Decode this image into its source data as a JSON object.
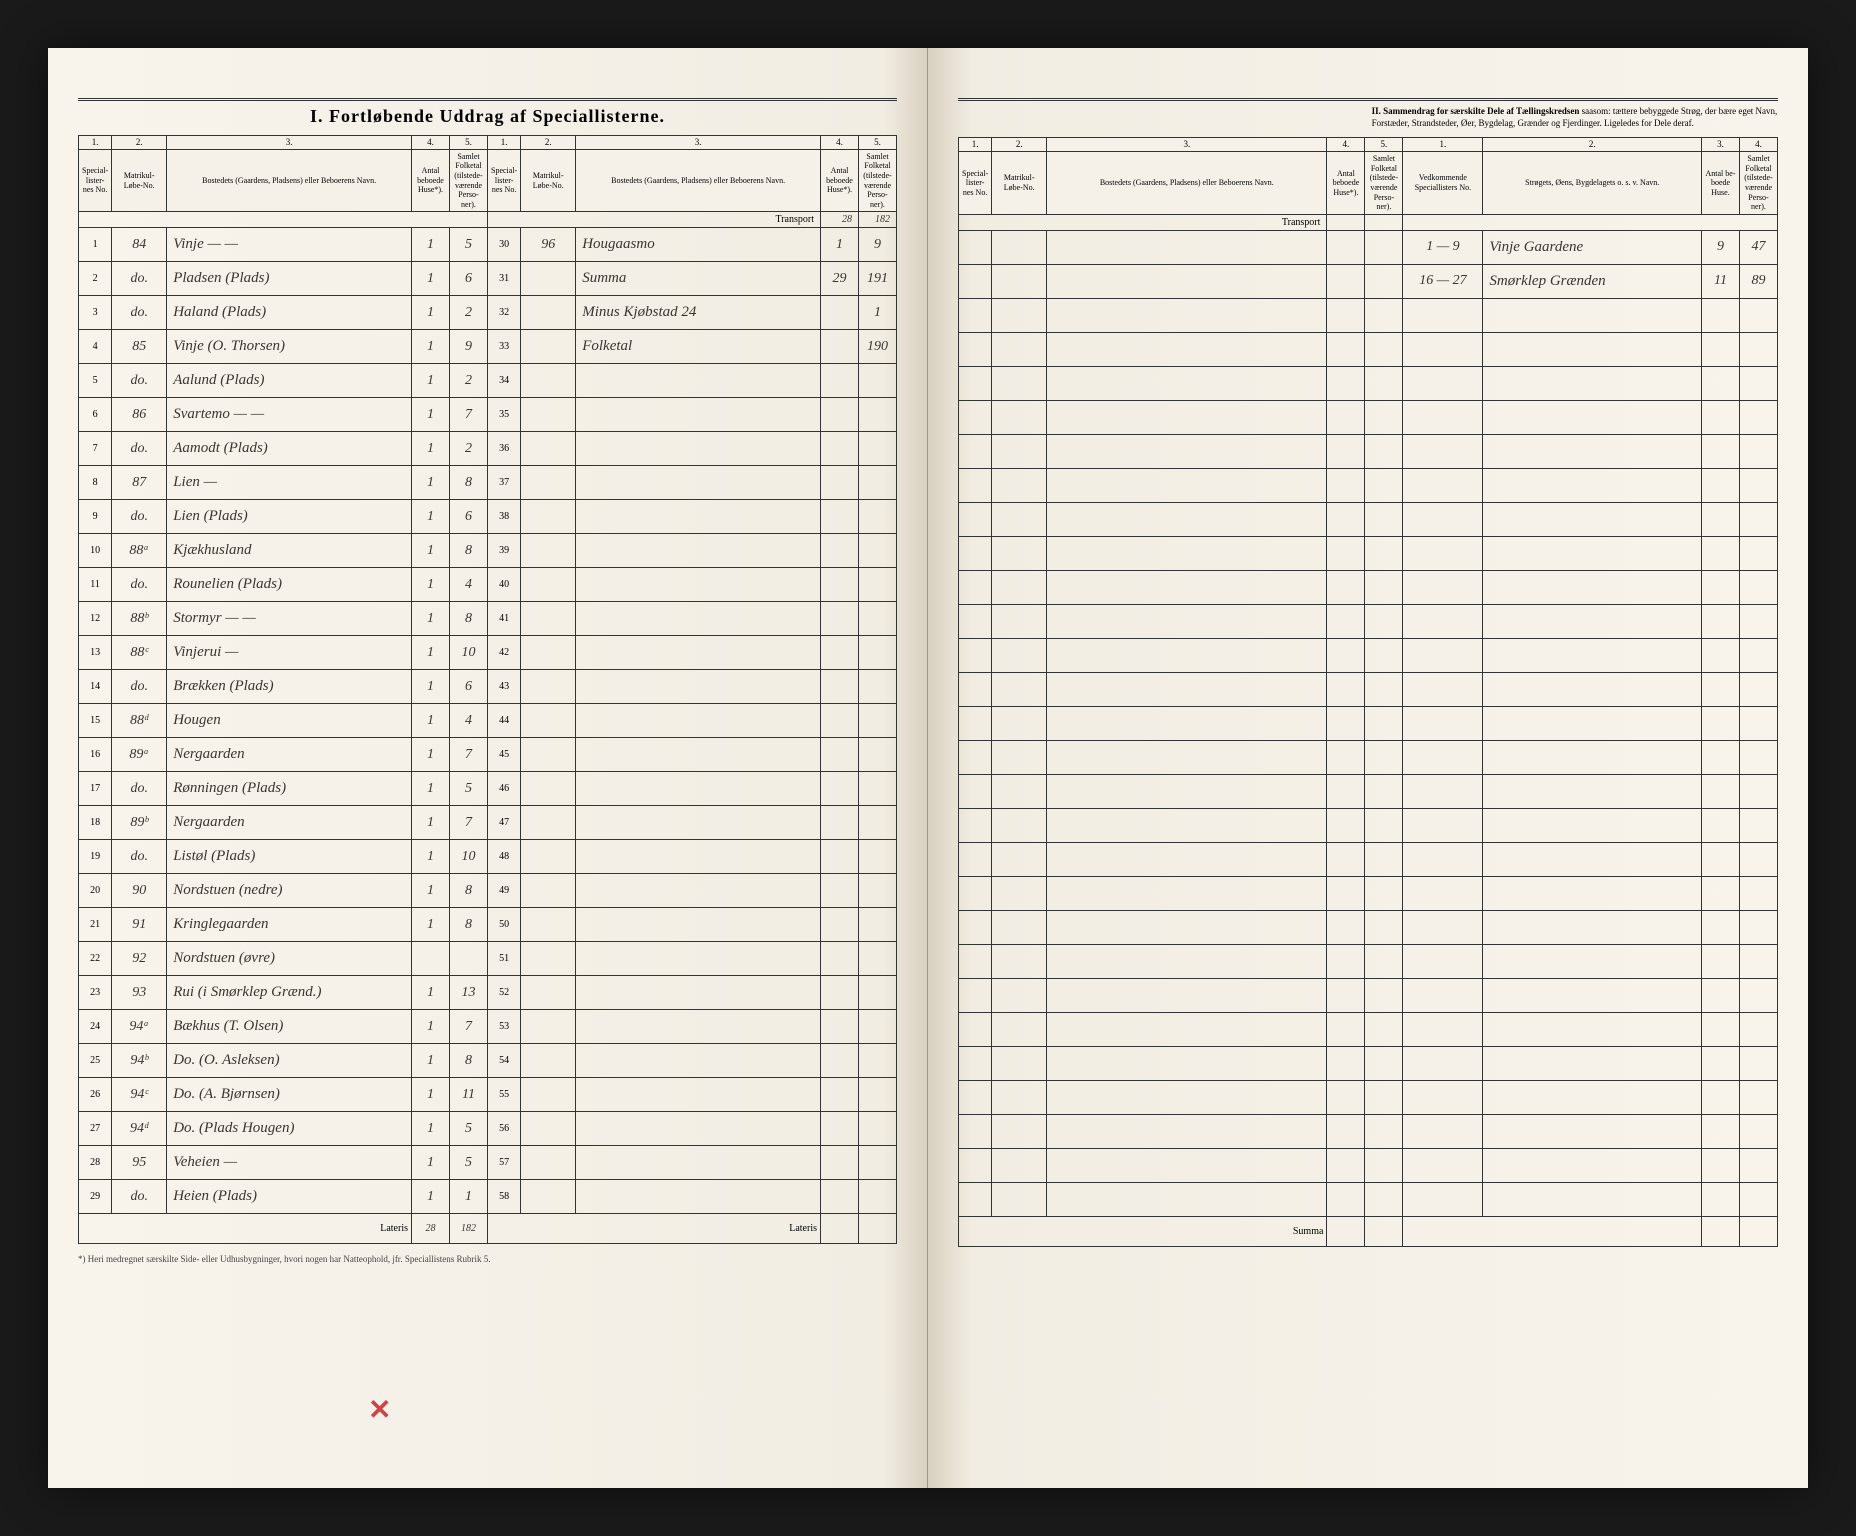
{
  "titles": {
    "main": "I.  Fortløbende Uddrag af Speciallisterne.",
    "section2_bold": "II.  Sammendrag for særskilte Dele af Tællingskredsen",
    "section2_rest": " saasom: tættere bebyggede Strøg, der bære eget Navn, Forstæder, Strandsteder, Øer, Bygdelag, Grænder og Fjerdinger. Ligeledes for Dele deraf.",
    "footnote": "*) Heri medregnet særskilte Side- eller Udhusbygninger, hvori nogen har Natteophold, jfr. Speciallistens Rubrik 5.",
    "transport": "Transport",
    "lateris": "Lateris",
    "summa": "Summa"
  },
  "headers": {
    "c1": "Special-lister-nes No.",
    "c2": "Matrikul-Løbe-No.",
    "c3": "Bostedets (Gaardens, Pladsens) eller Beboerens Navn.",
    "c4": "Antal beboede Huse*).",
    "c5": "Samlet Folketal (tilstede-værende Perso-ner).",
    "r1": "Vedkommende Speciallisters No.",
    "r2": "Strøgets, Øens, Bygdelagets o. s. v. Navn.",
    "r3": "Antal be-boede Huse.",
    "r4": "Samlet Folketal (tilstede-værende Perso-ner)."
  },
  "leftA": {
    "rows": [
      {
        "n": "1",
        "mat": "84",
        "name": "Vinje  —  —",
        "h": "1",
        "p": "5"
      },
      {
        "n": "2",
        "mat": "do.",
        "name": "Pladsen (Plads)",
        "h": "1",
        "p": "6"
      },
      {
        "n": "3",
        "mat": "do.",
        "name": "Haland (Plads)",
        "h": "1",
        "p": "2"
      },
      {
        "n": "4",
        "mat": "85",
        "name": "Vinje (O. Thorsen)",
        "h": "1",
        "p": "9"
      },
      {
        "n": "5",
        "mat": "do.",
        "name": "Aalund (Plads)",
        "h": "1",
        "p": "2"
      },
      {
        "n": "6",
        "mat": "86",
        "name": "Svartemo  —  —",
        "h": "1",
        "p": "7"
      },
      {
        "n": "7",
        "mat": "do.",
        "name": "Aamodt (Plads)",
        "h": "1",
        "p": "2"
      },
      {
        "n": "8",
        "mat": "87",
        "name": "Lien  —",
        "h": "1",
        "p": "8"
      },
      {
        "n": "9",
        "mat": "do.",
        "name": "Lien (Plads)",
        "h": "1",
        "p": "6"
      },
      {
        "n": "10",
        "mat": "88ᵃ",
        "name": "Kjækhusland",
        "h": "1",
        "p": "8"
      },
      {
        "n": "11",
        "mat": "do.",
        "name": "Rounelien (Plads)",
        "h": "1",
        "p": "4"
      },
      {
        "n": "12",
        "mat": "88ᵇ",
        "name": "Stormyr  —  —",
        "h": "1",
        "p": "8"
      },
      {
        "n": "13",
        "mat": "88ᶜ",
        "name": "Vinjerui  —",
        "h": "1",
        "p": "10"
      },
      {
        "n": "14",
        "mat": "do.",
        "name": "Brækken (Plads)",
        "h": "1",
        "p": "6"
      },
      {
        "n": "15",
        "mat": "88ᵈ",
        "name": "Hougen",
        "h": "1",
        "p": "4"
      },
      {
        "n": "16",
        "mat": "89ᵃ",
        "name": "Nergaarden",
        "h": "1",
        "p": "7"
      },
      {
        "n": "17",
        "mat": "do.",
        "name": "Rønningen (Plads)",
        "h": "1",
        "p": "5"
      },
      {
        "n": "18",
        "mat": "89ᵇ",
        "name": "Nergaarden",
        "h": "1",
        "p": "7"
      },
      {
        "n": "19",
        "mat": "do.",
        "name": "Listøl (Plads)",
        "h": "1",
        "p": "10"
      },
      {
        "n": "20",
        "mat": "90",
        "name": "Nordstuen (nedre)",
        "h": "1",
        "p": "8"
      },
      {
        "n": "21",
        "mat": "91",
        "name": "Kringlegaarden",
        "h": "1",
        "p": "8"
      },
      {
        "n": "22",
        "mat": "92",
        "name": "Nordstuen (øvre)",
        "h": "",
        "p": ""
      },
      {
        "n": "23",
        "mat": "93",
        "name": "Rui (i Smørklep Grænd.)",
        "h": "1",
        "p": "13"
      },
      {
        "n": "24",
        "mat": "94ᵃ",
        "name": "Bækhus (T. Olsen)",
        "h": "1",
        "p": "7"
      },
      {
        "n": "25",
        "mat": "94ᵇ",
        "name": "Do. (O. Asleksen)",
        "h": "1",
        "p": "8"
      },
      {
        "n": "26",
        "mat": "94ᶜ",
        "name": "Do. (A. Bjørnsen)",
        "h": "1",
        "p": "11"
      },
      {
        "n": "27",
        "mat": "94ᵈ",
        "name": "Do. (Plads Hougen)",
        "h": "1",
        "p": "5"
      },
      {
        "n": "28",
        "mat": "95",
        "name": "Veheien  —",
        "h": "1",
        "p": "5"
      },
      {
        "n": "29",
        "mat": "do.",
        "name": "Heien (Plads)",
        "h": "1",
        "p": "1"
      }
    ],
    "lateris_h": "28",
    "lateris_p": "182"
  },
  "leftB": {
    "transport_h": "28",
    "transport_p": "182",
    "rows": [
      {
        "n": "30",
        "mat": "96",
        "name": "Hougaasmo",
        "h": "1",
        "p": "9"
      },
      {
        "n": "31",
        "mat": "",
        "name": "Summa",
        "h": "29",
        "p": "191"
      },
      {
        "n": "32",
        "mat": "",
        "name": "Minus Kjøbstad 24",
        "h": "",
        "p": "1"
      },
      {
        "n": "33",
        "mat": "",
        "name": "Folketal",
        "h": "",
        "p": "190"
      },
      {
        "n": "34"
      },
      {
        "n": "35"
      },
      {
        "n": "36"
      },
      {
        "n": "37"
      },
      {
        "n": "38"
      },
      {
        "n": "39"
      },
      {
        "n": "40"
      },
      {
        "n": "41"
      },
      {
        "n": "42"
      },
      {
        "n": "43"
      },
      {
        "n": "44"
      },
      {
        "n": "45"
      },
      {
        "n": "46"
      },
      {
        "n": "47"
      },
      {
        "n": "48"
      },
      {
        "n": "49"
      },
      {
        "n": "50"
      },
      {
        "n": "51"
      },
      {
        "n": "52"
      },
      {
        "n": "53"
      },
      {
        "n": "54"
      },
      {
        "n": "55"
      },
      {
        "n": "56"
      },
      {
        "n": "57"
      },
      {
        "n": "58"
      }
    ]
  },
  "rightA": {
    "rows": [
      {
        "n": ""
      },
      {
        "n": ""
      },
      {
        "n": ""
      },
      {
        "n": ""
      },
      {
        "n": ""
      },
      {
        "n": ""
      },
      {
        "n": ""
      },
      {
        "n": ""
      },
      {
        "n": ""
      },
      {
        "n": ""
      },
      {
        "n": ""
      },
      {
        "n": ""
      },
      {
        "n": ""
      },
      {
        "n": ""
      },
      {
        "n": ""
      },
      {
        "n": ""
      },
      {
        "n": ""
      },
      {
        "n": ""
      },
      {
        "n": ""
      },
      {
        "n": ""
      },
      {
        "n": ""
      },
      {
        "n": ""
      },
      {
        "n": ""
      },
      {
        "n": ""
      },
      {
        "n": ""
      },
      {
        "n": ""
      },
      {
        "n": ""
      },
      {
        "n": ""
      },
      {
        "n": ""
      }
    ]
  },
  "rightB": {
    "rows": [
      {
        "no": "1 — 9",
        "name": "Vinje Gaardene",
        "h": "9",
        "p": "47"
      },
      {
        "no": "16 — 27",
        "name": "Smørklep Grænden",
        "h": "11",
        "p": "89"
      },
      {},
      {},
      {},
      {},
      {},
      {},
      {},
      {},
      {},
      {},
      {},
      {},
      {},
      {},
      {},
      {},
      {},
      {},
      {},
      {},
      {},
      {},
      {},
      {},
      {},
      {},
      {}
    ]
  },
  "colors": {
    "paper": "#f5f0e8",
    "ink": "#333333",
    "script": "#3a3530",
    "red": "#c44444",
    "background": "#1a1a1a"
  },
  "red_mark": "✕"
}
